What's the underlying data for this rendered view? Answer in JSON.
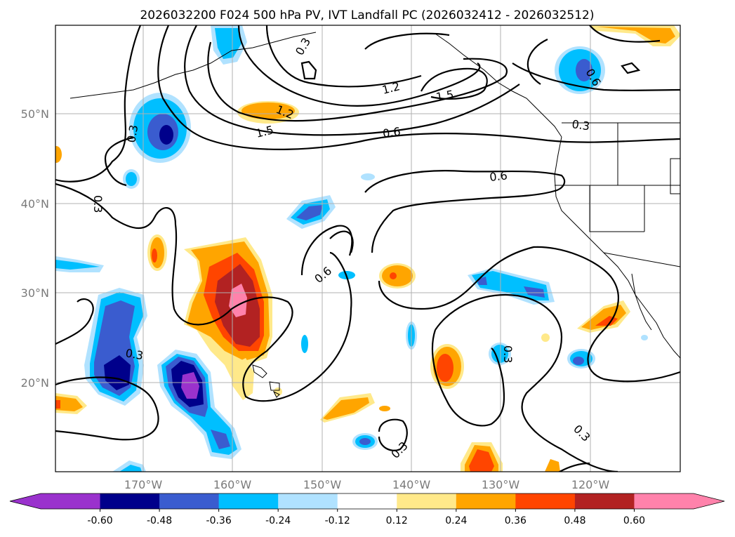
{
  "title": "2026032200 F024 500 hPa PV, IVT Landfall PC (2026032412 - 2026032512)",
  "map": {
    "lon_labels": [
      "170°W",
      "160°W",
      "150°W",
      "140°W",
      "130°W",
      "120°W"
    ],
    "lat_labels": [
      "50°N",
      "40°N",
      "30°N",
      "20°N"
    ],
    "contour_labels": [
      "0.3",
      "1.2",
      "1.5",
      "1.2",
      "1.5",
      "0.6",
      "0.6",
      "0.3",
      "0.6",
      "0.3",
      "0.3",
      "0.3",
      "0.3",
      "0.3",
      "0.3",
      "0.6"
    ]
  },
  "colorbar": {
    "tick_labels": [
      "-0.60",
      "-0.48",
      "-0.36",
      "-0.24",
      "-0.12",
      "0.12",
      "0.24",
      "0.36",
      "0.48",
      "0.60"
    ],
    "colors": [
      "#9a32cd",
      "#00008b",
      "#3a5ccf",
      "#00bfff",
      "#b0e2ff",
      "#ffffff",
      "#ffe98a",
      "#ffa500",
      "#ff4500",
      "#b22222",
      "#ff82ab"
    ]
  },
  "colors": {
    "neg_strong": "#00008b",
    "neg_mid": "#3a5ccf",
    "neg_light": "#00bfff",
    "neg_faint": "#b0e2ff",
    "pos_faint": "#ffe98a",
    "pos_light": "#ffa500",
    "pos_mid": "#ff4500",
    "pos_strong": "#b22222",
    "pos_max": "#ff82ab",
    "purple": "#9a32cd"
  }
}
